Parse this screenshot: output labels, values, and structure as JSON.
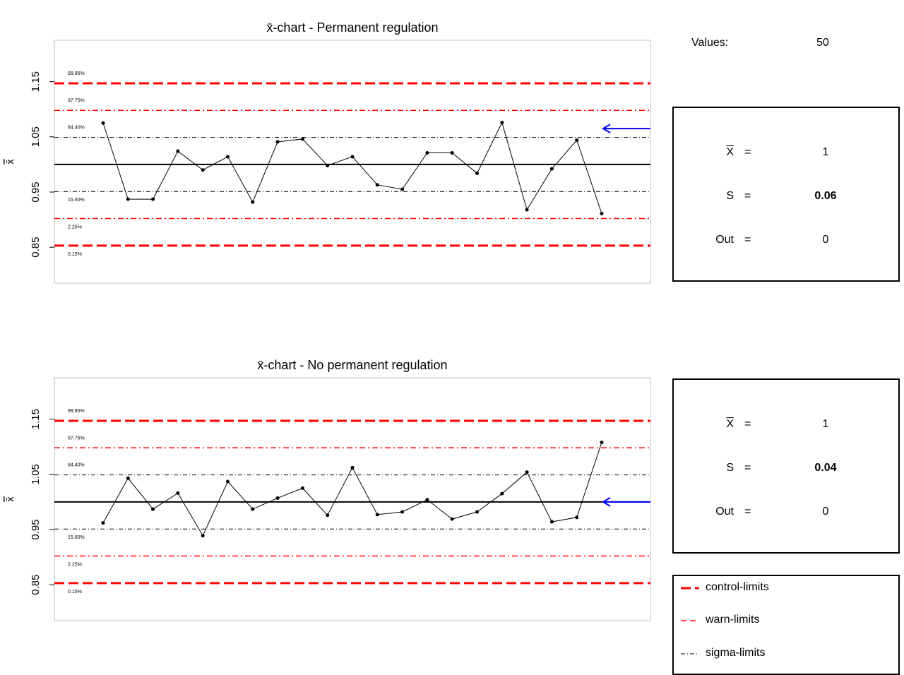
{
  "summary": {
    "values_label": "Values:",
    "values_count": "50"
  },
  "charts_meta": [
    {
      "stats": {
        "xbar_label": "X",
        "xbar_value": "1",
        "s_label": "S",
        "s_value": "0.06",
        "out_label": "Out",
        "out_value": "0",
        "eq": "="
      }
    },
    {
      "stats": {
        "xbar_label": "X",
        "xbar_value": "1",
        "s_label": "S",
        "s_value": "0.04",
        "out_label": "Out",
        "out_value": "0",
        "eq": "="
      }
    }
  ],
  "legend": {
    "items": [
      {
        "label": "control-limits",
        "style": "control",
        "color": "#ff0000"
      },
      {
        "label": "warn-limits",
        "style": "warn",
        "color": "#ff0000"
      },
      {
        "label": "sigma-limits",
        "style": "sigma",
        "color": "#000000"
      }
    ]
  },
  "colors": {
    "limit": "#ff0000",
    "arrow": "#0000ff",
    "line": "#000000",
    "frame": "#bfbfbf"
  },
  "chart_data": [
    {
      "type": "line",
      "title": "x̄-chart - Permanent regulation",
      "xlabel": "",
      "ylabel": "x̄",
      "ylim": [
        0.785,
        1.225
      ],
      "yticks": [
        "0.85",
        "0.95",
        "1.05",
        "1.15"
      ],
      "center_line": 1.0,
      "sigma_limits": [
        0.951,
        1.049
      ],
      "warn_limits": [
        0.902,
        1.098
      ],
      "control_limits": [
        0.853,
        1.147
      ],
      "limit_labels": [
        {
          "text": "99.85%",
          "y": 1.147
        },
        {
          "text": "97.75%",
          "y": 1.098
        },
        {
          "text": "84.40%",
          "y": 1.049
        },
        {
          "text": "15.60%",
          "y": 0.951
        },
        {
          "text": "2.25%",
          "y": 0.902
        },
        {
          "text": "0.15%",
          "y": 0.853
        }
      ],
      "arrow_y": 1.065,
      "x": [
        1,
        2,
        3,
        4,
        5,
        6,
        7,
        8,
        9,
        10,
        11,
        12,
        13,
        14,
        15,
        16,
        17,
        18,
        19,
        20,
        21,
        22
      ],
      "values": [
        1.075,
        0.937,
        0.937,
        1.024,
        0.99,
        1.014,
        0.932,
        1.041,
        1.046,
        0.998,
        1.014,
        0.963,
        0.955,
        1.021,
        1.021,
        0.984,
        1.076,
        0.918,
        0.992,
        1.044,
        0.911,
        null
      ],
      "grid": false
    },
    {
      "type": "line",
      "title": "x̄-chart - No permanent regulation",
      "xlabel": "",
      "ylabel": "x̄",
      "ylim": [
        0.785,
        1.225
      ],
      "yticks": [
        "0.85",
        "0.95",
        "1.05",
        "1.15"
      ],
      "center_line": 1.0,
      "sigma_limits": [
        0.951,
        1.049
      ],
      "warn_limits": [
        0.902,
        1.098
      ],
      "control_limits": [
        0.853,
        1.147
      ],
      "limit_labels": [
        {
          "text": "99.85%",
          "y": 1.147
        },
        {
          "text": "97.75%",
          "y": 1.098
        },
        {
          "text": "84.40%",
          "y": 1.049
        },
        {
          "text": "15.60%",
          "y": 0.951
        },
        {
          "text": "2.25%",
          "y": 0.902
        },
        {
          "text": "0.15%",
          "y": 0.853
        }
      ],
      "arrow_y": 1.0,
      "x": [
        1,
        2,
        3,
        4,
        5,
        6,
        7,
        8,
        9,
        10,
        11,
        12,
        13,
        14,
        15,
        16,
        17,
        18,
        19,
        20,
        21,
        22
      ],
      "values": [
        0.962,
        1.043,
        0.987,
        1.016,
        0.939,
        1.037,
        0.987,
        1.007,
        1.025,
        0.976,
        1.062,
        0.977,
        0.982,
        1.004,
        0.969,
        0.982,
        1.015,
        1.054,
        0.964,
        0.972,
        1.108,
        null
      ],
      "grid": false
    }
  ]
}
